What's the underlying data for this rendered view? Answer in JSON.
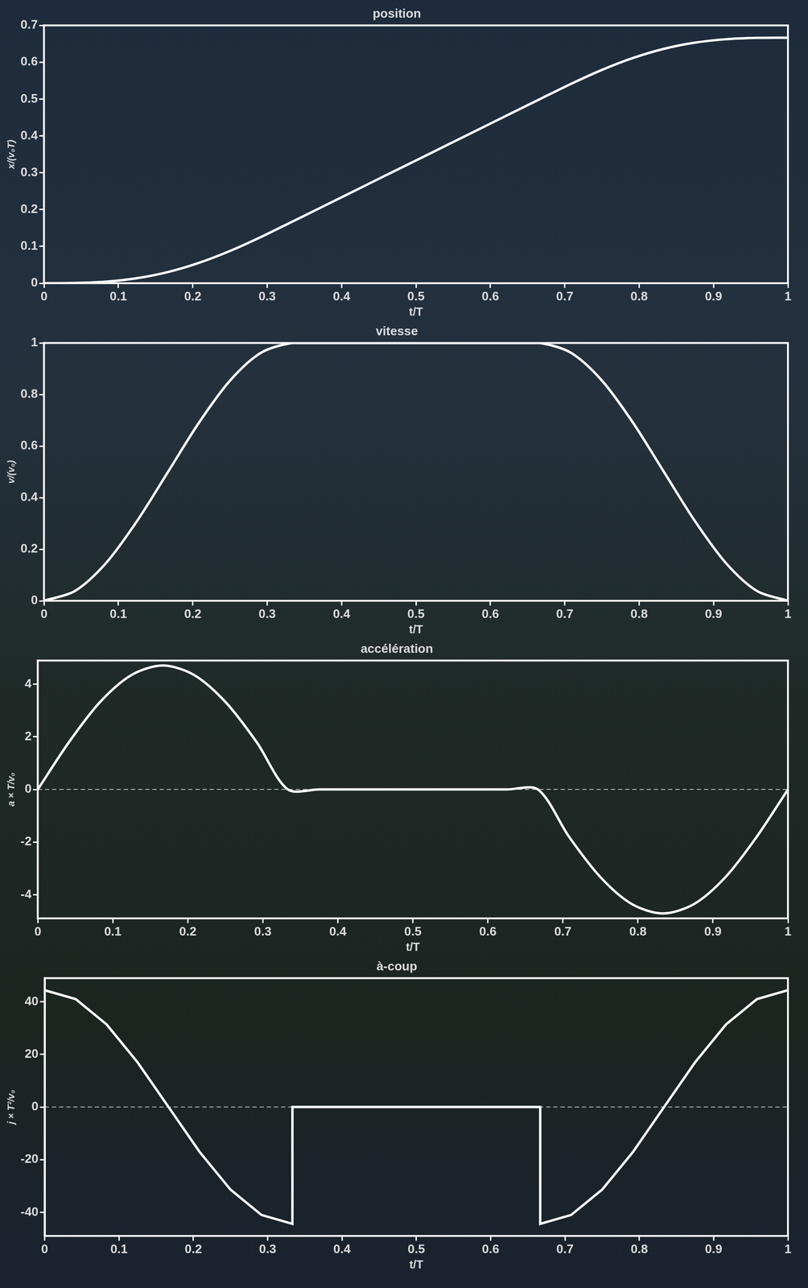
{
  "chart_data": [
    {
      "type": "line",
      "title": "position",
      "x_label": "t/T",
      "y_label": "x/(v₀T)",
      "x": [
        0,
        0.0417,
        0.0833,
        0.125,
        0.1667,
        0.2083,
        0.25,
        0.2917,
        0.3333,
        0.375,
        0.4167,
        0.4583,
        0.5,
        0.5417,
        0.5833,
        0.625,
        0.6667,
        0.7083,
        0.75,
        0.7917,
        0.8333,
        0.875,
        0.9167,
        0.9583,
        1
      ],
      "series": [
        {
          "color": "#ffffff",
          "values": [
            0,
            0.0005,
            0.0042,
            0.0135,
            0.0303,
            0.0552,
            0.0875,
            0.1255,
            0.1667,
            0.2083,
            0.25,
            0.2917,
            0.3333,
            0.375,
            0.4167,
            0.4583,
            0.5,
            0.5412,
            0.5792,
            0.6115,
            0.6364,
            0.6532,
            0.6625,
            0.6662,
            0.6667
          ]
        }
      ],
      "xlim": [
        0,
        1
      ],
      "xticks": [
        0,
        0.1,
        0.2,
        0.3,
        0.4,
        0.5,
        0.6,
        0.7,
        0.8,
        0.9,
        1
      ],
      "ylim": [
        0,
        0.7
      ],
      "yticks": [
        0,
        0.1,
        0.2,
        0.3,
        0.4,
        0.5,
        0.6,
        0.7
      ],
      "grid": false
    },
    {
      "type": "line",
      "title": "vitesse",
      "x_label": "t/T",
      "y_label": "v/(v₀)",
      "x": [
        0,
        0.0417,
        0.0833,
        0.125,
        0.1667,
        0.2083,
        0.25,
        0.2917,
        0.3333,
        0.375,
        0.4167,
        0.4583,
        0.5,
        0.5417,
        0.5833,
        0.625,
        0.6667,
        0.7083,
        0.75,
        0.7917,
        0.8333,
        0.875,
        0.9167,
        0.9583,
        1
      ],
      "series": [
        {
          "color": "#ffffff",
          "values": [
            0,
            0.038,
            0.146,
            0.309,
            0.5,
            0.691,
            0.854,
            0.962,
            1,
            1,
            1,
            1,
            1,
            1,
            1,
            1,
            1,
            0.962,
            0.854,
            0.691,
            0.5,
            0.309,
            0.146,
            0.038,
            0
          ]
        }
      ],
      "xlim": [
        0,
        1
      ],
      "xticks": [
        0,
        0.1,
        0.2,
        0.3,
        0.4,
        0.5,
        0.6,
        0.7,
        0.8,
        0.9,
        1
      ],
      "ylim": [
        0,
        1
      ],
      "yticks": [
        0,
        0.2,
        0.4,
        0.6,
        0.8,
        1
      ],
      "grid": false
    },
    {
      "type": "line",
      "title": "accélération",
      "x_label": "t/T",
      "y_label": "a × T/v₀",
      "x": [
        0,
        0.0417,
        0.0833,
        0.125,
        0.1667,
        0.2083,
        0.25,
        0.2917,
        0.3333,
        0.375,
        0.4167,
        0.4583,
        0.5,
        0.5417,
        0.5833,
        0.625,
        0.6667,
        0.7083,
        0.75,
        0.7917,
        0.8333,
        0.875,
        0.9167,
        0.9583,
        1
      ],
      "series": [
        {
          "color": "#ffffff",
          "values": [
            0,
            1.803,
            3.332,
            4.353,
            4.712,
            4.353,
            3.332,
            1.803,
            0,
            0,
            0,
            0,
            0,
            0,
            0,
            0,
            0,
            -1.803,
            -3.332,
            -4.353,
            -4.712,
            -4.353,
            -3.332,
            -1.803,
            0
          ]
        }
      ],
      "xlim": [
        0,
        1
      ],
      "xticks": [
        0,
        0.1,
        0.2,
        0.3,
        0.4,
        0.5,
        0.6,
        0.7,
        0.8,
        0.9,
        1
      ],
      "ylim": [
        -4.9,
        4.9
      ],
      "yticks": [
        -4,
        -2,
        0,
        2,
        4
      ],
      "grid": false
    },
    {
      "type": "line",
      "title": "à-coup",
      "x_label": "t/T",
      "y_label": "j × T²/v₀",
      "x": [
        0,
        0.0417,
        0.0833,
        0.125,
        0.1667,
        0.2083,
        0.25,
        0.2917,
        0.3333,
        0.3333,
        0.6667,
        0.6667,
        0.7083,
        0.75,
        0.7917,
        0.8333,
        0.875,
        0.9167,
        0.9583,
        1
      ],
      "series": [
        {
          "color": "#ffffff",
          "values": [
            44.41,
            41.03,
            31.4,
            17,
            0,
            -17,
            -31.4,
            -41.03,
            -44.41,
            0,
            0,
            -44.41,
            -41.03,
            -31.4,
            -17,
            0,
            17,
            31.4,
            41.03,
            44.41
          ]
        }
      ],
      "xlim": [
        0,
        1
      ],
      "xticks": [
        0,
        0.1,
        0.2,
        0.3,
        0.4,
        0.5,
        0.6,
        0.7,
        0.8,
        0.9,
        1
      ],
      "ylim": [
        -49,
        49
      ],
      "yticks": [
        -40,
        -20,
        0,
        20,
        40
      ],
      "grid": false
    }
  ]
}
